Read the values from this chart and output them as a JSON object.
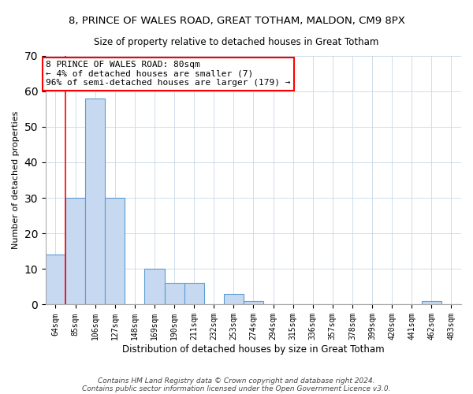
{
  "title": "8, PRINCE OF WALES ROAD, GREAT TOTHAM, MALDON, CM9 8PX",
  "subtitle": "Size of property relative to detached houses in Great Totham",
  "xlabel": "Distribution of detached houses by size in Great Totham",
  "ylabel": "Number of detached properties",
  "bar_labels": [
    "64sqm",
    "85sqm",
    "106sqm",
    "127sqm",
    "148sqm",
    "169sqm",
    "190sqm",
    "211sqm",
    "232sqm",
    "253sqm",
    "274sqm",
    "294sqm",
    "315sqm",
    "336sqm",
    "357sqm",
    "378sqm",
    "399sqm",
    "420sqm",
    "441sqm",
    "462sqm",
    "483sqm"
  ],
  "bar_values": [
    14,
    30,
    58,
    30,
    0,
    10,
    6,
    6,
    0,
    3,
    1,
    0,
    0,
    0,
    0,
    0,
    0,
    0,
    0,
    1,
    0
  ],
  "bar_color": "#c6d9f0",
  "bar_edge_color": "#5b9bd5",
  "highlight_color": "#ff0000",
  "ylim": [
    0,
    70
  ],
  "yticks": [
    0,
    10,
    20,
    30,
    40,
    50,
    60,
    70
  ],
  "annotation_box_text": "8 PRINCE OF WALES ROAD: 80sqm\n← 4% of detached houses are smaller (7)\n96% of semi-detached houses are larger (179) →",
  "annotation_box_color": "#ffffff",
  "annotation_box_edge_color": "#ff0000",
  "footnote_line1": "Contains HM Land Registry data © Crown copyright and database right 2024.",
  "footnote_line2": "Contains public sector information licensed under the Open Government Licence v3.0.",
  "grid_color": "#c8d8e8"
}
